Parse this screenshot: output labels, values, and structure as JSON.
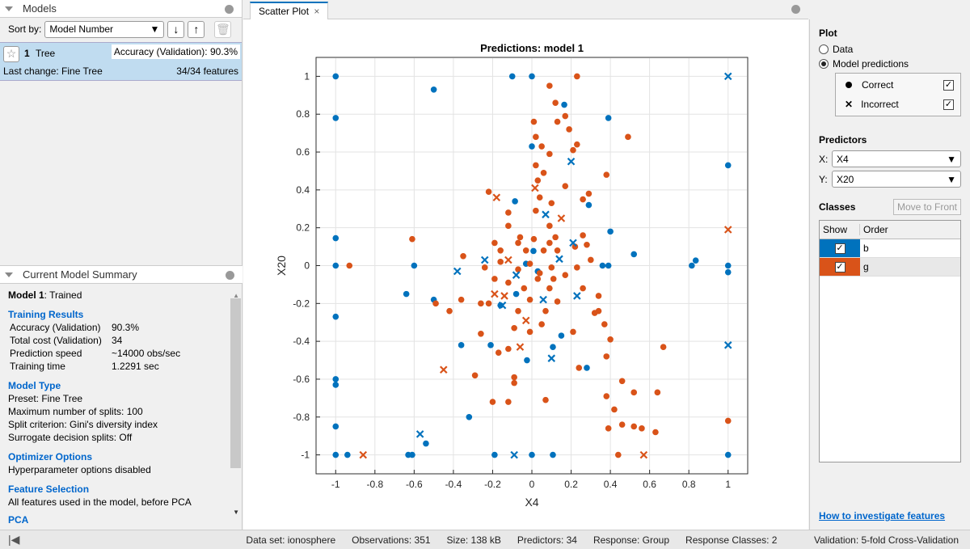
{
  "models_panel": {
    "title": "Models",
    "sort_label": "Sort by:",
    "sort_value": "Model Number",
    "model": {
      "number": "1",
      "type": "Tree",
      "accuracy": "Accuracy (Validation): 90.3%",
      "last_change": "Last change: Fine Tree",
      "features": "34/34 features"
    }
  },
  "summary": {
    "title": "Current Model Summary",
    "model_label": "Model 1",
    "model_status": ": Trained",
    "training_title": "Training Results",
    "training": [
      {
        "k": "Accuracy (Validation)",
        "v": "90.3%"
      },
      {
        "k": "Total cost (Validation)",
        "v": "34"
      },
      {
        "k": "Prediction speed",
        "v": "~14000 obs/sec"
      },
      {
        "k": "Training time",
        "v": "1.2291 sec"
      }
    ],
    "model_type_title": "Model Type",
    "model_type": [
      "Preset: Fine Tree",
      "Maximum number of splits: 100",
      "Split criterion: Gini's diversity index",
      "Surrogate decision splits: Off"
    ],
    "optimizer_title": "Optimizer Options",
    "optimizer": "Hyperparameter options disabled",
    "feature_title": "Feature Selection",
    "feature": "All features used in the model, before PCA",
    "pca_title": "PCA"
  },
  "tab": {
    "label": "Scatter Plot"
  },
  "right": {
    "plot_title": "Plot",
    "data": "Data",
    "predictions": "Model predictions",
    "correct": "Correct",
    "incorrect": "Incorrect",
    "predictors_title": "Predictors",
    "x_label": "X:",
    "x_value": "X4",
    "y_label": "Y:",
    "y_value": "X20",
    "classes_title": "Classes",
    "move_front": "Move to Front",
    "col_show": "Show",
    "col_order": "Order",
    "classes": [
      {
        "name": "b",
        "color": "#0072bd"
      },
      {
        "name": "g",
        "color": "#d95319"
      }
    ],
    "help_link": "How to investigate features"
  },
  "status": {
    "dataset": "Data set: ionosphere",
    "obs": "Observations: 351",
    "size": "Size: 138 kB",
    "predictors": "Predictors: 34",
    "response": "Response: Group",
    "classes": "Response Classes: 2",
    "validation": "Validation: 5-fold Cross-Validation"
  },
  "chart_data": {
    "type": "scatter",
    "title": "Predictions: model 1",
    "xlabel": "X4",
    "ylabel": "X20",
    "xlim": [
      -1.1,
      1.1
    ],
    "ylim": [
      -1.1,
      1.1
    ],
    "xticks": [
      "-1",
      "-0.8",
      "-0.6",
      "-0.4",
      "-0.2",
      "0",
      "0.2",
      "0.4",
      "0.6",
      "0.8",
      "1"
    ],
    "yticks": [
      "-1",
      "-0.8",
      "-0.6",
      "-0.4",
      "-0.2",
      "0",
      "0.2",
      "0.4",
      "0.6",
      "0.8",
      "1"
    ],
    "grid": true,
    "series": [
      {
        "name": "b correct",
        "color": "#0072bd",
        "marker": "o",
        "points": [
          [
            -1,
            1
          ],
          [
            -1,
            0.78
          ],
          [
            -1,
            0.145
          ],
          [
            -1,
            0
          ],
          [
            -1,
            -0.27
          ],
          [
            -1,
            -0.6
          ],
          [
            -1,
            -0.63
          ],
          [
            -1,
            -0.85
          ],
          [
            -1,
            -1
          ],
          [
            -0.94,
            -1
          ],
          [
            -0.5,
            0.93
          ],
          [
            -0.1,
            1
          ],
          [
            0,
            1
          ],
          [
            0.165,
            0.85
          ],
          [
            0.39,
            0.78
          ],
          [
            0,
            0.63
          ],
          [
            0.29,
            0.32
          ],
          [
            -0.086,
            0.34
          ],
          [
            0.4,
            0.18
          ],
          [
            -0.6,
            0
          ],
          [
            -0.64,
            -0.15
          ],
          [
            -0.5,
            -0.18
          ],
          [
            -0.36,
            -0.42
          ],
          [
            -0.21,
            -0.42
          ],
          [
            0.15,
            -0.37
          ],
          [
            0.107,
            -0.43
          ],
          [
            -0.025,
            -0.5
          ],
          [
            0.28,
            -0.54
          ],
          [
            -0.32,
            -0.8
          ],
          [
            -0.54,
            -0.94
          ],
          [
            -0.63,
            -1
          ],
          [
            -0.61,
            -1
          ],
          [
            -0.19,
            -1
          ],
          [
            0,
            -1
          ],
          [
            0.107,
            -1
          ],
          [
            1,
            0.53
          ],
          [
            1,
            0
          ],
          [
            1,
            -0.035
          ],
          [
            1,
            -1
          ],
          [
            0.815,
            0
          ],
          [
            0.835,
            0.027
          ],
          [
            0.52,
            0.06
          ],
          [
            0.36,
            0
          ],
          [
            0.39,
            0
          ],
          [
            -0.16,
            -0.21
          ],
          [
            -0.08,
            -0.15
          ],
          [
            0.008,
            0.077
          ],
          [
            -0.03,
            0.01
          ],
          [
            0.03,
            -0.03
          ]
        ]
      },
      {
        "name": "g correct",
        "color": "#d95319",
        "marker": "o",
        "points": [
          [
            -0.93,
            0
          ],
          [
            -0.61,
            0.14
          ],
          [
            0.23,
            1
          ],
          [
            0.09,
            0.95
          ],
          [
            0.12,
            0.86
          ],
          [
            0.17,
            0.79
          ],
          [
            0.13,
            0.76
          ],
          [
            0.19,
            0.72
          ],
          [
            0.23,
            0.64
          ],
          [
            0.21,
            0.61
          ],
          [
            0.01,
            0.76
          ],
          [
            0.02,
            0.68
          ],
          [
            0.05,
            0.63
          ],
          [
            0.09,
            0.59
          ],
          [
            0.06,
            0.49
          ],
          [
            0.02,
            0.53
          ],
          [
            0.03,
            0.45
          ],
          [
            0.04,
            0.36
          ],
          [
            0.1,
            0.33
          ],
          [
            0.02,
            0.29
          ],
          [
            0.17,
            0.42
          ],
          [
            0.26,
            0.35
          ],
          [
            0.38,
            0.48
          ],
          [
            0.49,
            0.68
          ],
          [
            0.29,
            0.38
          ],
          [
            -0.22,
            0.39
          ],
          [
            -0.12,
            0.28
          ],
          [
            -0.19,
            0.12
          ],
          [
            -0.07,
            0.12
          ],
          [
            0.01,
            0.14
          ],
          [
            -0.16,
            0.08
          ],
          [
            -0.24,
            -0.01
          ],
          [
            -0.19,
            -0.07
          ],
          [
            -0.12,
            -0.09
          ],
          [
            -0.04,
            -0.12
          ],
          [
            0.03,
            -0.07
          ],
          [
            0.11,
            -0.07
          ],
          [
            0.17,
            -0.05
          ],
          [
            0.23,
            -0.01
          ],
          [
            0.26,
            -0.12
          ],
          [
            0.34,
            -0.16
          ],
          [
            0.34,
            -0.24
          ],
          [
            0.37,
            -0.31
          ],
          [
            0.4,
            -0.39
          ],
          [
            0.38,
            -0.48
          ],
          [
            0.46,
            -0.61
          ],
          [
            0.38,
            -0.69
          ],
          [
            0.42,
            -0.76
          ],
          [
            0.46,
            -0.84
          ],
          [
            0.39,
            -0.86
          ],
          [
            0.52,
            -0.85
          ],
          [
            0.63,
            -0.88
          ],
          [
            0.67,
            -0.43
          ],
          [
            0.52,
            -0.67
          ],
          [
            0.44,
            -1
          ],
          [
            -0.09,
            -0.62
          ],
          [
            -0.12,
            -0.72
          ],
          [
            -0.2,
            -0.72
          ],
          [
            0.07,
            -0.71
          ],
          [
            -0.29,
            -0.58
          ],
          [
            -0.17,
            -0.46
          ],
          [
            -0.09,
            -0.59
          ],
          [
            -0.42,
            -0.24
          ],
          [
            -0.36,
            -0.18
          ],
          [
            -0.26,
            -0.2
          ],
          [
            -0.07,
            -0.24
          ],
          [
            -0.01,
            -0.35
          ],
          [
            0.07,
            -0.24
          ],
          [
            0.13,
            -0.19
          ],
          [
            -0.09,
            -0.33
          ],
          [
            -0.03,
            0.08
          ],
          [
            0.06,
            0.08
          ],
          [
            0.13,
            0.08
          ],
          [
            0.09,
            0.12
          ],
          [
            -0.01,
            0.01
          ],
          [
            0.04,
            -0.04
          ],
          [
            0.09,
            -0.12
          ],
          [
            -0.01,
            -0.18
          ],
          [
            0.05,
            -0.31
          ],
          [
            0.28,
            0.11
          ],
          [
            0.3,
            0.03
          ],
          [
            0.22,
            0.1
          ],
          [
            0.12,
            0.15
          ],
          [
            0.26,
            0.16
          ],
          [
            0.1,
            -0.01
          ],
          [
            -0.07,
            -0.02
          ],
          [
            -0.16,
            0.02
          ],
          [
            0.24,
            -0.54
          ],
          [
            -0.12,
            -0.44
          ],
          [
            -0.26,
            -0.36
          ],
          [
            -0.35,
            0.05
          ],
          [
            -0.49,
            -0.2
          ],
          [
            0.21,
            -0.35
          ],
          [
            0.32,
            -0.25
          ],
          [
            -0.12,
            0.21
          ],
          [
            -0.06,
            0.15
          ],
          [
            0.09,
            0.21
          ],
          [
            -0.22,
            -0.2
          ],
          [
            1,
            -0.82
          ],
          [
            0.64,
            -0.67
          ],
          [
            0.56,
            -0.86
          ]
        ]
      },
      {
        "name": "b incorrect",
        "color": "#0072bd",
        "marker": "x",
        "points": [
          [
            1,
            1
          ],
          [
            0.2,
            0.55
          ],
          [
            0.07,
            0.27
          ],
          [
            -0.38,
            -0.03
          ],
          [
            -0.24,
            0.03
          ],
          [
            -0.08,
            -0.05
          ],
          [
            -0.15,
            -0.21
          ],
          [
            0.058,
            -0.18
          ],
          [
            0.23,
            -0.16
          ],
          [
            0.1,
            -0.49
          ],
          [
            -0.57,
            -0.89
          ],
          [
            -0.09,
            -1
          ],
          [
            1,
            -0.42
          ],
          [
            0.14,
            0.035
          ],
          [
            0.21,
            0.12
          ]
        ]
      },
      {
        "name": "g incorrect",
        "color": "#d95319",
        "marker": "x",
        "points": [
          [
            -0.86,
            -1
          ],
          [
            -0.45,
            -0.55
          ],
          [
            -0.18,
            0.36
          ],
          [
            0.15,
            0.25
          ],
          [
            1,
            0.19
          ],
          [
            0.57,
            -1
          ],
          [
            0.016,
            0.41
          ],
          [
            -0.06,
            -0.43
          ],
          [
            -0.03,
            -0.29
          ],
          [
            -0.14,
            -0.16
          ],
          [
            -0.12,
            0.03
          ],
          [
            -0.19,
            -0.15
          ]
        ]
      }
    ]
  }
}
